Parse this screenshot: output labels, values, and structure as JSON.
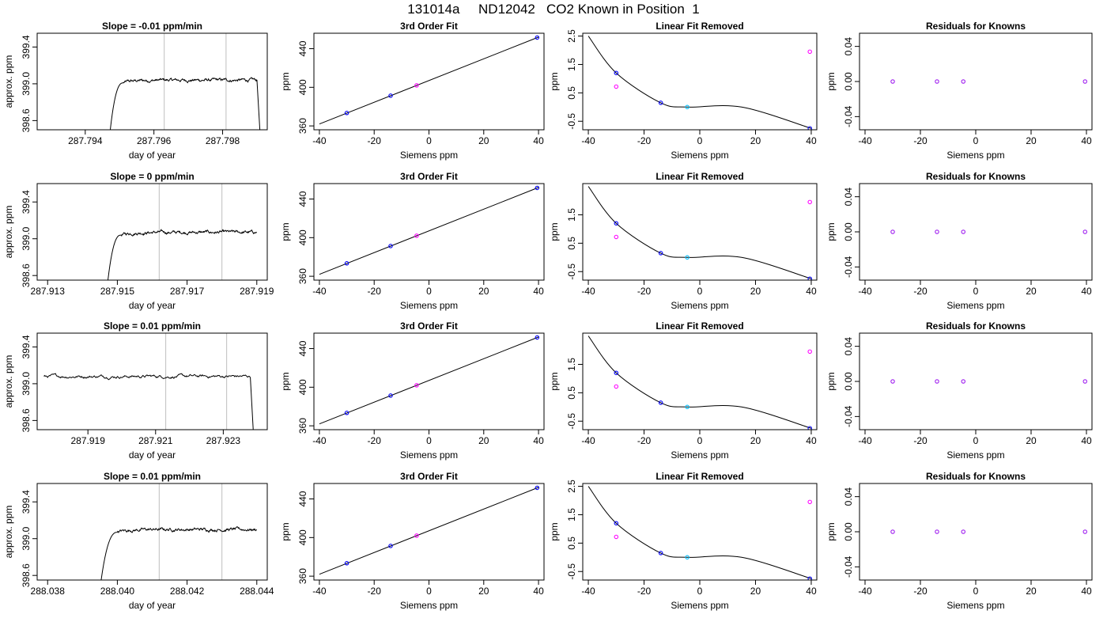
{
  "figure_title": "131014a     ND12042   CO2 Known in Position  1",
  "colors": {
    "trace": "#000000",
    "marker_line": "#bebebe",
    "cal_fit": "#0000ff",
    "known": "#a020f0",
    "mid_point": "#00bfff",
    "outlier": "#ff00ff",
    "red_dot": "#ff0000"
  },
  "chart_data": [
    {
      "type": "line",
      "row": 0,
      "col": 0,
      "title": "Slope =  -0.01  ppm/min",
      "xlabel": "day of year",
      "ylabel": "approx. ppm",
      "xlim": [
        287.7926,
        287.7993
      ],
      "ylim": [
        398.5,
        399.55
      ],
      "xticks": [
        287.794,
        287.796,
        287.798
      ],
      "xtick_labels": [
        "287.794",
        "287.796",
        "287.798"
      ],
      "yticks": [
        398.6,
        399.0,
        399.4
      ],
      "ytick_labels": [
        "398.6",
        "399.0",
        "399.4"
      ],
      "markers": [
        287.7963,
        287.7981
      ],
      "trace": {
        "start": 287.7947,
        "rise_to": 287.7951,
        "end_flat": 287.799,
        "drop_end": 287.7991,
        "level": 399.04,
        "noise": 0.02
      }
    },
    {
      "type": "line",
      "row": 0,
      "col": 1,
      "title": "3rd Order Fit",
      "xlabel": "Siemens ppm",
      "ylabel": "ppm",
      "xlim": [
        -42,
        42
      ],
      "ylim": [
        356,
        456
      ],
      "xticks": [
        -40,
        -20,
        0,
        20,
        40
      ],
      "xtick_labels": [
        "-40",
        "-20",
        "0",
        "20",
        "40"
      ],
      "yticks": [
        360,
        400,
        440
      ],
      "ytick_labels": [
        "360",
        "400",
        "440"
      ],
      "line": {
        "x": [
          -40,
          40
        ],
        "y": [
          362.0,
          452.0
        ]
      },
      "points": [
        {
          "x": -30,
          "y": 373.4,
          "color": "#0000ff"
        },
        {
          "x": -14,
          "y": 391.3,
          "color": "#0000ff"
        },
        {
          "x": -4.5,
          "y": 402.0,
          "color": "#ff00ff"
        },
        {
          "x": 39.5,
          "y": 451.5,
          "color": "#0000ff"
        }
      ]
    },
    {
      "type": "line",
      "row": 0,
      "col": 2,
      "title": "Linear Fit Removed",
      "xlabel": "Siemens ppm",
      "ylabel": "ppm",
      "xlim": [
        -42,
        42
      ],
      "ylim": [
        -0.8,
        2.6
      ],
      "xticks": [
        -40,
        -20,
        0,
        20,
        40
      ],
      "xtick_labels": [
        "-40",
        "-20",
        "0",
        "20",
        "40"
      ],
      "yticks": [
        -0.5,
        0.5,
        1.5,
        2.5
      ],
      "ytick_labels": [
        "-0.5",
        "0.5",
        "1.5",
        "2.5"
      ],
      "curve": {
        "x": [
          -40,
          -30,
          -14,
          -4.5,
          15,
          40
        ],
        "y": [
          2.5,
          1.2,
          0.15,
          0.0,
          0.0,
          -0.75
        ]
      },
      "points": [
        {
          "x": -30,
          "y": 1.2,
          "color": "#0000ff"
        },
        {
          "x": -30,
          "y": 0.72,
          "color": "#ff00ff"
        },
        {
          "x": -14,
          "y": 0.15,
          "color": "#0000ff"
        },
        {
          "x": -4.5,
          "y": 0.0,
          "color": "#00bfff"
        },
        {
          "x": 39.5,
          "y": 1.95,
          "color": "#ff00ff"
        },
        {
          "x": 39.5,
          "y": -0.75,
          "color": "#0000ff"
        }
      ]
    },
    {
      "type": "scatter",
      "row": 0,
      "col": 3,
      "title": "Residuals for Knowns",
      "xlabel": "Siemens ppm",
      "ylabel": "ppm",
      "xlim": [
        -42,
        42
      ],
      "ylim": [
        -0.055,
        0.055
      ],
      "xticks": [
        -40,
        -20,
        0,
        20,
        40
      ],
      "xtick_labels": [
        "-40",
        "-20",
        "0",
        "20",
        "40"
      ],
      "yticks": [
        -0.04,
        0.0,
        0.04
      ],
      "ytick_labels": [
        "-0.04",
        "0.00",
        "0.04"
      ],
      "points": [
        {
          "x": -30,
          "y": 0.0,
          "color": "#a020f0"
        },
        {
          "x": -14,
          "y": 0.0,
          "color": "#a020f0"
        },
        {
          "x": -4.5,
          "y": 0.0,
          "color": "#a020f0"
        },
        {
          "x": 39.5,
          "y": 0.0,
          "color": "#a020f0"
        }
      ]
    },
    {
      "type": "line",
      "row": 1,
      "col": 0,
      "title": "Slope =  0  ppm/min",
      "xlabel": "day of year",
      "ylabel": "approx. ppm",
      "xlim": [
        287.9127,
        287.9193
      ],
      "ylim": [
        398.55,
        399.6
      ],
      "xticks": [
        287.913,
        287.915,
        287.917,
        287.919
      ],
      "xtick_labels": [
        "287.913",
        "287.915",
        "287.917",
        "287.919"
      ],
      "yticks": [
        398.6,
        399.0,
        399.4
      ],
      "ytick_labels": [
        "398.6",
        "399.0",
        "399.4"
      ],
      "markers": [
        287.9162,
        287.918
      ],
      "trace": {
        "start": 287.9147,
        "rise_to": 287.9151,
        "end_flat": 287.919,
        "drop_end": null,
        "level": 399.07,
        "noise": 0.02
      }
    },
    {
      "type": "line",
      "row": 1,
      "col": 1,
      "title": "3rd Order Fit",
      "xlabel": "Siemens ppm",
      "ylabel": "ppm",
      "xlim": [
        -42,
        42
      ],
      "ylim": [
        356,
        456
      ],
      "xticks": [
        -40,
        -20,
        0,
        20,
        40
      ],
      "xtick_labels": [
        "-40",
        "-20",
        "0",
        "20",
        "40"
      ],
      "yticks": [
        360,
        400,
        440
      ],
      "ytick_labels": [
        "360",
        "400",
        "440"
      ],
      "line": {
        "x": [
          -40,
          40
        ],
        "y": [
          362.0,
          452.0
        ]
      },
      "points": [
        {
          "x": -30,
          "y": 373.4,
          "color": "#0000ff"
        },
        {
          "x": -14,
          "y": 391.3,
          "color": "#0000ff"
        },
        {
          "x": -4.5,
          "y": 402.0,
          "color": "#ff00ff"
        },
        {
          "x": 39.5,
          "y": 451.5,
          "color": "#0000ff"
        }
      ]
    },
    {
      "type": "line",
      "row": 1,
      "col": 2,
      "title": "Linear Fit Removed",
      "xlabel": "Siemens ppm",
      "ylabel": "ppm",
      "xlim": [
        -42,
        42
      ],
      "ylim": [
        -0.8,
        2.6
      ],
      "xticks": [
        -40,
        -20,
        0,
        20,
        40
      ],
      "xtick_labels": [
        "-40",
        "-20",
        "0",
        "20",
        "40"
      ],
      "yticks": [
        -0.5,
        0.5,
        1.5
      ],
      "ytick_labels": [
        "-0.5",
        "0.5",
        "1.5"
      ],
      "curve": {
        "x": [
          -40,
          -30,
          -14,
          -4.5,
          15,
          40
        ],
        "y": [
          2.5,
          1.2,
          0.15,
          0.0,
          0.0,
          -0.75
        ]
      },
      "points": [
        {
          "x": -30,
          "y": 1.2,
          "color": "#0000ff"
        },
        {
          "x": -30,
          "y": 0.72,
          "color": "#ff00ff"
        },
        {
          "x": -14,
          "y": 0.15,
          "color": "#0000ff"
        },
        {
          "x": -4.5,
          "y": 0.0,
          "color": "#00bfff"
        },
        {
          "x": 39.5,
          "y": 1.95,
          "color": "#ff00ff"
        },
        {
          "x": 39.5,
          "y": -0.75,
          "color": "#0000ff"
        }
      ]
    },
    {
      "type": "scatter",
      "row": 1,
      "col": 3,
      "title": "Residuals for Knowns",
      "xlabel": "Siemens ppm",
      "ylabel": "ppm",
      "xlim": [
        -42,
        42
      ],
      "ylim": [
        -0.055,
        0.055
      ],
      "xticks": [
        -40,
        -20,
        0,
        20,
        40
      ],
      "xtick_labels": [
        "-40",
        "-20",
        "0",
        "20",
        "40"
      ],
      "yticks": [
        -0.04,
        0.0,
        0.04
      ],
      "ytick_labels": [
        "-0.04",
        "0.00",
        "0.04"
      ],
      "points": [
        {
          "x": -30,
          "y": 0.0,
          "color": "#a020f0"
        },
        {
          "x": -14,
          "y": 0.0,
          "color": "#a020f0"
        },
        {
          "x": -4.5,
          "y": 0.0,
          "color": "#a020f0"
        },
        {
          "x": 39.5,
          "y": 0.0,
          "color": "#a020f0"
        }
      ]
    },
    {
      "type": "line",
      "row": 2,
      "col": 0,
      "title": "Slope =  0.01  ppm/min",
      "xlabel": "day of year",
      "ylabel": "approx. ppm",
      "xlim": [
        287.9175,
        287.9243
      ],
      "ylim": [
        398.5,
        399.55
      ],
      "xticks": [
        287.919,
        287.921,
        287.923
      ],
      "xtick_labels": [
        "287.919",
        "287.921",
        "287.923"
      ],
      "yticks": [
        398.6,
        399.0,
        399.4
      ],
      "ytick_labels": [
        "398.6",
        "399.0",
        "399.4"
      ],
      "markers": [
        287.9213,
        287.9231
      ],
      "trace": {
        "start": 287.9177,
        "rise_to": null,
        "end_flat": 287.9238,
        "drop_end": 287.9239,
        "level": 399.08,
        "noise": 0.02
      }
    },
    {
      "type": "line",
      "row": 2,
      "col": 1,
      "title": "3rd Order Fit",
      "xlabel": "Siemens ppm",
      "ylabel": "ppm",
      "xlim": [
        -42,
        42
      ],
      "ylim": [
        356,
        456
      ],
      "xticks": [
        -40,
        -20,
        0,
        20,
        40
      ],
      "xtick_labels": [
        "-40",
        "-20",
        "0",
        "20",
        "40"
      ],
      "yticks": [
        360,
        400,
        440
      ],
      "ytick_labels": [
        "360",
        "400",
        "440"
      ],
      "line": {
        "x": [
          -40,
          40
        ],
        "y": [
          362.0,
          452.0
        ]
      },
      "points": [
        {
          "x": -30,
          "y": 373.4,
          "color": "#0000ff"
        },
        {
          "x": -14,
          "y": 391.3,
          "color": "#0000ff"
        },
        {
          "x": -4.5,
          "y": 402.0,
          "color": "#ff00ff"
        },
        {
          "x": 39.5,
          "y": 451.5,
          "color": "#0000ff"
        }
      ]
    },
    {
      "type": "line",
      "row": 2,
      "col": 2,
      "title": "Linear Fit Removed",
      "xlabel": "Siemens ppm",
      "ylabel": "ppm",
      "xlim": [
        -42,
        42
      ],
      "ylim": [
        -0.8,
        2.6
      ],
      "xticks": [
        -40,
        -20,
        0,
        20,
        40
      ],
      "xtick_labels": [
        "-40",
        "-20",
        "0",
        "20",
        "40"
      ],
      "yticks": [
        -0.5,
        0.5,
        1.5
      ],
      "ytick_labels": [
        "-0.5",
        "0.5",
        "1.5"
      ],
      "curve": {
        "x": [
          -40,
          -30,
          -14,
          -4.5,
          15,
          40
        ],
        "y": [
          2.5,
          1.2,
          0.15,
          0.0,
          0.0,
          -0.75
        ]
      },
      "points": [
        {
          "x": -30,
          "y": 1.2,
          "color": "#0000ff"
        },
        {
          "x": -30,
          "y": 0.72,
          "color": "#ff00ff"
        },
        {
          "x": -14,
          "y": 0.15,
          "color": "#0000ff"
        },
        {
          "x": -4.5,
          "y": 0.0,
          "color": "#00bfff"
        },
        {
          "x": 39.5,
          "y": 1.95,
          "color": "#ff00ff"
        },
        {
          "x": 39.5,
          "y": -0.75,
          "color": "#0000ff"
        }
      ]
    },
    {
      "type": "scatter",
      "row": 2,
      "col": 3,
      "title": "Residuals for Knowns",
      "xlabel": "Siemens ppm",
      "ylabel": "ppm",
      "xlim": [
        -42,
        42
      ],
      "ylim": [
        -0.055,
        0.055
      ],
      "xticks": [
        -40,
        -20,
        0,
        20,
        40
      ],
      "xtick_labels": [
        "-40",
        "-20",
        "0",
        "20",
        "40"
      ],
      "yticks": [
        -0.04,
        0.0,
        0.04
      ],
      "ytick_labels": [
        "-0.04",
        "0.00",
        "0.04"
      ],
      "points": [
        {
          "x": -30,
          "y": 0.0,
          "color": "#a020f0"
        },
        {
          "x": -14,
          "y": 0.0,
          "color": "#a020f0"
        },
        {
          "x": -4.5,
          "y": 0.0,
          "color": "#a020f0"
        },
        {
          "x": 39.5,
          "y": 0.0,
          "color": "#a020f0"
        }
      ]
    },
    {
      "type": "line",
      "row": 3,
      "col": 0,
      "title": "Slope =  0.01  ppm/min",
      "xlabel": "day of year",
      "ylabel": "approx. ppm",
      "xlim": [
        288.0377,
        288.0443
      ],
      "ylim": [
        398.55,
        399.6
      ],
      "xticks": [
        288.038,
        288.04,
        288.042,
        288.044
      ],
      "xtick_labels": [
        "288.038",
        "288.040",
        "288.042",
        "288.044"
      ],
      "yticks": [
        398.6,
        399.0,
        399.4
      ],
      "ytick_labels": [
        "398.6",
        "399.0",
        "399.4"
      ],
      "markers": [
        288.0412,
        288.043
      ],
      "trace": {
        "start": 288.0395,
        "rise_to": 288.04,
        "end_flat": 288.044,
        "drop_end": null,
        "level": 399.1,
        "noise": 0.02
      }
    },
    {
      "type": "line",
      "row": 3,
      "col": 1,
      "title": "3rd Order Fit",
      "xlabel": "Siemens ppm",
      "ylabel": "ppm",
      "xlim": [
        -42,
        42
      ],
      "ylim": [
        356,
        456
      ],
      "xticks": [
        -40,
        -20,
        0,
        20,
        40
      ],
      "xtick_labels": [
        "-40",
        "-20",
        "0",
        "20",
        "40"
      ],
      "yticks": [
        360,
        400,
        440
      ],
      "ytick_labels": [
        "360",
        "400",
        "440"
      ],
      "line": {
        "x": [
          -40,
          40
        ],
        "y": [
          362.0,
          452.0
        ]
      },
      "points": [
        {
          "x": -30,
          "y": 373.4,
          "color": "#0000ff"
        },
        {
          "x": -14,
          "y": 391.3,
          "color": "#0000ff"
        },
        {
          "x": -4.5,
          "y": 402.0,
          "color": "#ff00ff"
        },
        {
          "x": 39.5,
          "y": 451.5,
          "color": "#0000ff"
        }
      ]
    },
    {
      "type": "line",
      "row": 3,
      "col": 2,
      "title": "Linear Fit Removed",
      "xlabel": "Siemens ppm",
      "ylabel": "ppm",
      "xlim": [
        -42,
        42
      ],
      "ylim": [
        -0.8,
        2.6
      ],
      "xticks": [
        -40,
        -20,
        0,
        20,
        40
      ],
      "xtick_labels": [
        "-40",
        "-20",
        "0",
        "20",
        "40"
      ],
      "yticks": [
        -0.5,
        0.5,
        1.5,
        2.5
      ],
      "ytick_labels": [
        "-0.5",
        "0.5",
        "1.5",
        "2.5"
      ],
      "curve": {
        "x": [
          -40,
          -30,
          -14,
          -4.5,
          15,
          40
        ],
        "y": [
          2.5,
          1.2,
          0.15,
          0.0,
          0.0,
          -0.75
        ]
      },
      "points": [
        {
          "x": -30,
          "y": 1.2,
          "color": "#0000ff"
        },
        {
          "x": -30,
          "y": 0.72,
          "color": "#ff00ff"
        },
        {
          "x": -14,
          "y": 0.15,
          "color": "#0000ff"
        },
        {
          "x": -4.5,
          "y": 0.0,
          "color": "#00bfff"
        },
        {
          "x": 39.5,
          "y": 1.95,
          "color": "#ff00ff"
        },
        {
          "x": 39.5,
          "y": -0.75,
          "color": "#0000ff"
        }
      ]
    },
    {
      "type": "scatter",
      "row": 3,
      "col": 3,
      "title": "Residuals for Knowns",
      "xlabel": "Siemens ppm",
      "ylabel": "ppm",
      "xlim": [
        -42,
        42
      ],
      "ylim": [
        -0.055,
        0.055
      ],
      "xticks": [
        -40,
        -20,
        0,
        20,
        40
      ],
      "xtick_labels": [
        "-40",
        "-20",
        "0",
        "20",
        "40"
      ],
      "yticks": [
        -0.04,
        0.0,
        0.04
      ],
      "ytick_labels": [
        "-0.04",
        "0.00",
        "0.04"
      ],
      "points": [
        {
          "x": -30,
          "y": 0.0,
          "color": "#a020f0"
        },
        {
          "x": -14,
          "y": 0.0,
          "color": "#a020f0"
        },
        {
          "x": -4.5,
          "y": 0.0,
          "color": "#a020f0"
        },
        {
          "x": 39.5,
          "y": 0.0,
          "color": "#a020f0"
        }
      ]
    }
  ]
}
